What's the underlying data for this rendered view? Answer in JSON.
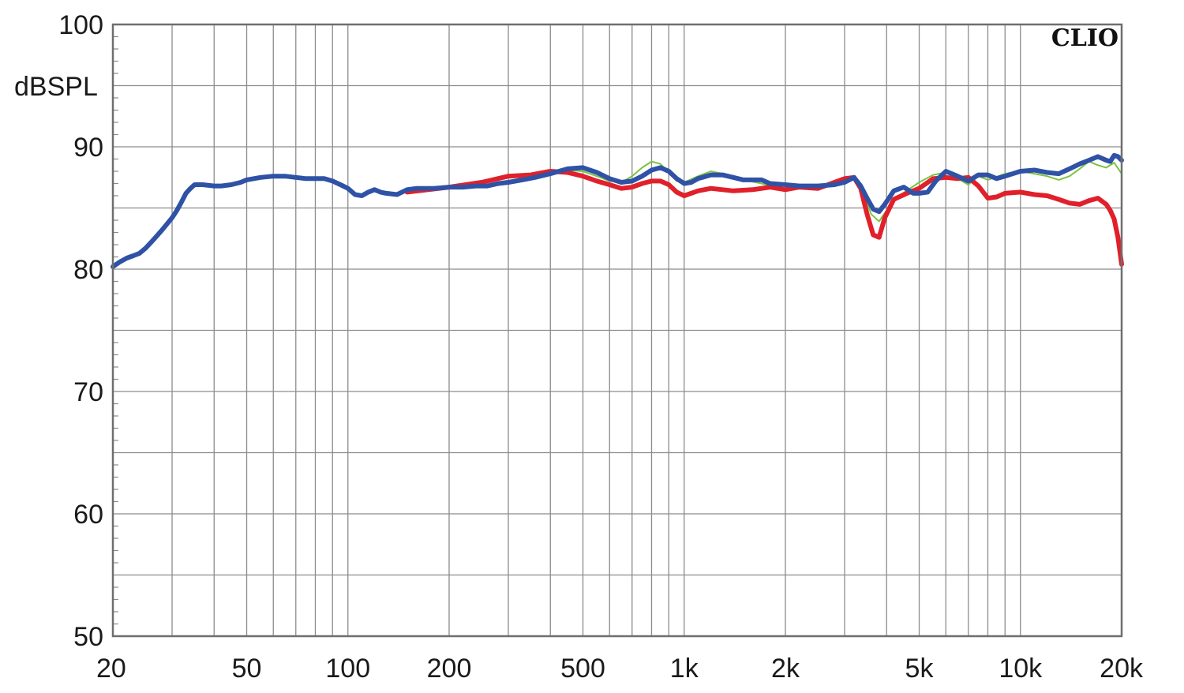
{
  "chart_data": {
    "type": "line",
    "brand": "CLIO",
    "ylabel": "dBSPL",
    "xlabel": "",
    "x_scale": "log",
    "xlim": [
      20,
      20000
    ],
    "ylim": [
      50,
      100
    ],
    "grid": true,
    "x_ticks": [
      {
        "value": 20,
        "label": "20"
      },
      {
        "value": 50,
        "label": "50"
      },
      {
        "value": 100,
        "label": "100"
      },
      {
        "value": 200,
        "label": "200"
      },
      {
        "value": 500,
        "label": "500"
      },
      {
        "value": 1000,
        "label": "1k"
      },
      {
        "value": 2000,
        "label": "2k"
      },
      {
        "value": 5000,
        "label": "5k"
      },
      {
        "value": 10000,
        "label": "10k"
      },
      {
        "value": 20000,
        "label": "20k"
      }
    ],
    "y_ticks": [
      {
        "value": 100,
        "label": "100"
      },
      {
        "value": 90,
        "label": "90"
      },
      {
        "value": 80,
        "label": "80"
      },
      {
        "value": 70,
        "label": "70"
      },
      {
        "value": 60,
        "label": "60"
      },
      {
        "value": 50,
        "label": "50"
      }
    ],
    "series": [
      {
        "color": "#7dc242",
        "width": 2,
        "points": [
          [
            450,
            88.1
          ],
          [
            500,
            88.0
          ],
          [
            550,
            87.6
          ],
          [
            600,
            87.2
          ],
          [
            650,
            87.1
          ],
          [
            700,
            87.6
          ],
          [
            750,
            88.3
          ],
          [
            800,
            88.8
          ],
          [
            850,
            88.6
          ],
          [
            900,
            87.9
          ],
          [
            950,
            87.2
          ],
          [
            1000,
            87.1
          ],
          [
            1100,
            87.6
          ],
          [
            1200,
            88.0
          ],
          [
            1300,
            87.8
          ],
          [
            1400,
            87.6
          ],
          [
            1500,
            87.3
          ],
          [
            1700,
            87.0
          ],
          [
            1800,
            86.8
          ],
          [
            2000,
            86.9
          ],
          [
            2300,
            86.6
          ],
          [
            2600,
            86.9
          ],
          [
            3000,
            87.1
          ],
          [
            3200,
            87.4
          ],
          [
            3400,
            86.3
          ],
          [
            3600,
            84.5
          ],
          [
            3800,
            83.9
          ],
          [
            4000,
            84.8
          ],
          [
            4300,
            85.9
          ],
          [
            4700,
            86.6
          ],
          [
            5000,
            87.1
          ],
          [
            5500,
            87.7
          ],
          [
            6000,
            87.9
          ],
          [
            6500,
            87.4
          ],
          [
            7000,
            86.9
          ],
          [
            7500,
            87.6
          ],
          [
            8000,
            87.3
          ],
          [
            9000,
            87.8
          ],
          [
            10000,
            88.0
          ],
          [
            11000,
            87.8
          ],
          [
            12000,
            87.6
          ],
          [
            13000,
            87.3
          ],
          [
            14000,
            87.6
          ],
          [
            15000,
            88.2
          ],
          [
            16000,
            88.8
          ],
          [
            17000,
            88.5
          ],
          [
            18000,
            88.3
          ],
          [
            19000,
            88.7
          ],
          [
            20000,
            87.8
          ]
        ]
      },
      {
        "color": "#e0202a",
        "width": 6,
        "points": [
          [
            150,
            86.3
          ],
          [
            200,
            86.7
          ],
          [
            250,
            87.1
          ],
          [
            300,
            87.6
          ],
          [
            350,
            87.7
          ],
          [
            400,
            88.0
          ],
          [
            450,
            87.9
          ],
          [
            500,
            87.6
          ],
          [
            550,
            87.2
          ],
          [
            600,
            86.9
          ],
          [
            650,
            86.6
          ],
          [
            700,
            86.7
          ],
          [
            750,
            87.0
          ],
          [
            800,
            87.2
          ],
          [
            850,
            87.2
          ],
          [
            900,
            86.9
          ],
          [
            950,
            86.3
          ],
          [
            1000,
            86.0
          ],
          [
            1100,
            86.4
          ],
          [
            1200,
            86.6
          ],
          [
            1400,
            86.4
          ],
          [
            1600,
            86.5
          ],
          [
            1800,
            86.7
          ],
          [
            2000,
            86.5
          ],
          [
            2200,
            86.7
          ],
          [
            2500,
            86.6
          ],
          [
            2800,
            87.1
          ],
          [
            3000,
            87.4
          ],
          [
            3200,
            87.5
          ],
          [
            3350,
            86.6
          ],
          [
            3500,
            84.5
          ],
          [
            3650,
            82.8
          ],
          [
            3800,
            82.6
          ],
          [
            3950,
            84.2
          ],
          [
            4200,
            85.7
          ],
          [
            4600,
            86.2
          ],
          [
            5000,
            86.6
          ],
          [
            5500,
            87.4
          ],
          [
            6000,
            87.5
          ],
          [
            6500,
            87.4
          ],
          [
            7000,
            87.5
          ],
          [
            7500,
            86.8
          ],
          [
            8000,
            85.8
          ],
          [
            8500,
            85.9
          ],
          [
            9000,
            86.2
          ],
          [
            10000,
            86.3
          ],
          [
            11000,
            86.1
          ],
          [
            12000,
            86.0
          ],
          [
            13000,
            85.7
          ],
          [
            14000,
            85.4
          ],
          [
            15000,
            85.3
          ],
          [
            16000,
            85.6
          ],
          [
            17000,
            85.8
          ],
          [
            18000,
            85.3
          ],
          [
            18500,
            84.8
          ],
          [
            19000,
            84.1
          ],
          [
            19500,
            82.6
          ],
          [
            20000,
            80.4
          ]
        ]
      },
      {
        "color": "#2f52a6",
        "width": 6,
        "points": [
          [
            20,
            80.2
          ],
          [
            21,
            80.6
          ],
          [
            22,
            80.9
          ],
          [
            23,
            81.1
          ],
          [
            24,
            81.3
          ],
          [
            25,
            81.7
          ],
          [
            26,
            82.2
          ],
          [
            27,
            82.7
          ],
          [
            28,
            83.2
          ],
          [
            29,
            83.7
          ],
          [
            30,
            84.2
          ],
          [
            31,
            84.8
          ],
          [
            32,
            85.5
          ],
          [
            33,
            86.2
          ],
          [
            34,
            86.6
          ],
          [
            35,
            86.9
          ],
          [
            37,
            86.9
          ],
          [
            40,
            86.8
          ],
          [
            42,
            86.8
          ],
          [
            45,
            86.9
          ],
          [
            48,
            87.1
          ],
          [
            50,
            87.3
          ],
          [
            55,
            87.5
          ],
          [
            60,
            87.6
          ],
          [
            65,
            87.6
          ],
          [
            70,
            87.5
          ],
          [
            75,
            87.4
          ],
          [
            80,
            87.4
          ],
          [
            85,
            87.4
          ],
          [
            90,
            87.2
          ],
          [
            95,
            86.9
          ],
          [
            100,
            86.6
          ],
          [
            105,
            86.1
          ],
          [
            110,
            86.0
          ],
          [
            115,
            86.3
          ],
          [
            120,
            86.5
          ],
          [
            125,
            86.3
          ],
          [
            130,
            86.2
          ],
          [
            140,
            86.1
          ],
          [
            150,
            86.5
          ],
          [
            160,
            86.6
          ],
          [
            180,
            86.6
          ],
          [
            200,
            86.7
          ],
          [
            220,
            86.7
          ],
          [
            240,
            86.8
          ],
          [
            260,
            86.8
          ],
          [
            280,
            87.0
          ],
          [
            300,
            87.1
          ],
          [
            330,
            87.3
          ],
          [
            360,
            87.5
          ],
          [
            400,
            87.8
          ],
          [
            450,
            88.2
          ],
          [
            500,
            88.3
          ],
          [
            550,
            87.9
          ],
          [
            600,
            87.4
          ],
          [
            650,
            87.1
          ],
          [
            700,
            87.2
          ],
          [
            750,
            87.6
          ],
          [
            800,
            88.1
          ],
          [
            850,
            88.3
          ],
          [
            900,
            88.0
          ],
          [
            950,
            87.4
          ],
          [
            1000,
            87.0
          ],
          [
            1050,
            87.1
          ],
          [
            1100,
            87.4
          ],
          [
            1200,
            87.7
          ],
          [
            1300,
            87.7
          ],
          [
            1400,
            87.5
          ],
          [
            1500,
            87.3
          ],
          [
            1700,
            87.3
          ],
          [
            1800,
            87.0
          ],
          [
            2000,
            86.9
          ],
          [
            2200,
            86.8
          ],
          [
            2500,
            86.8
          ],
          [
            2800,
            86.9
          ],
          [
            3000,
            87.1
          ],
          [
            3200,
            87.5
          ],
          [
            3350,
            86.8
          ],
          [
            3500,
            85.8
          ],
          [
            3650,
            84.9
          ],
          [
            3800,
            84.7
          ],
          [
            3950,
            85.3
          ],
          [
            4200,
            86.4
          ],
          [
            4500,
            86.7
          ],
          [
            4800,
            86.2
          ],
          [
            5000,
            86.2
          ],
          [
            5300,
            86.3
          ],
          [
            5600,
            87.2
          ],
          [
            6000,
            88.0
          ],
          [
            6500,
            87.6
          ],
          [
            7000,
            87.2
          ],
          [
            7500,
            87.7
          ],
          [
            8000,
            87.7
          ],
          [
            8500,
            87.4
          ],
          [
            9000,
            87.6
          ],
          [
            10000,
            88.0
          ],
          [
            11000,
            88.1
          ],
          [
            12000,
            87.9
          ],
          [
            13000,
            87.8
          ],
          [
            14000,
            88.2
          ],
          [
            15000,
            88.6
          ],
          [
            16000,
            88.9
          ],
          [
            17000,
            89.2
          ],
          [
            18000,
            88.9
          ],
          [
            18500,
            88.8
          ],
          [
            19000,
            89.3
          ],
          [
            19500,
            89.2
          ],
          [
            20000,
            88.9
          ]
        ]
      }
    ]
  }
}
